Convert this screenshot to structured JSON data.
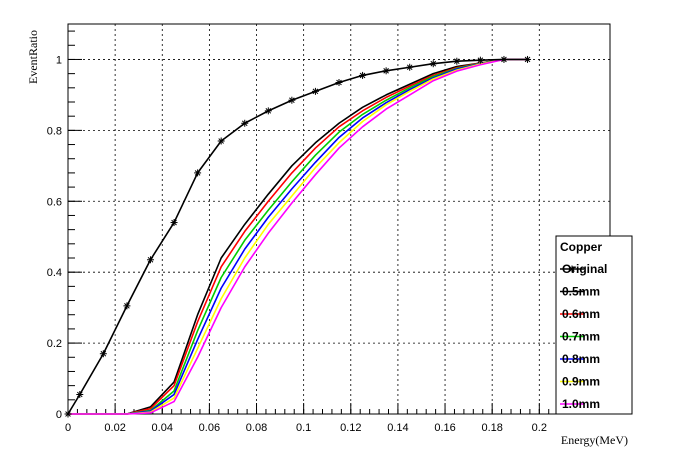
{
  "chart_data": {
    "type": "line",
    "title": "",
    "xlabel": "Energy(MeV)",
    "ylabel": "EventRatio",
    "xlim": [
      0,
      0.23
    ],
    "ylim": [
      0,
      1.1
    ],
    "x_ticks": [
      0,
      0.02,
      0.04,
      0.06,
      0.08,
      0.1,
      0.12,
      0.14,
      0.16,
      0.18,
      0.2
    ],
    "x_tick_labels": [
      "0",
      "0.02",
      "0.04",
      "0.06",
      "0.08",
      "0.1",
      "0.12",
      "0.14",
      "0.16",
      "0.18",
      "0.2"
    ],
    "y_ticks": [
      0,
      0.2,
      0.4,
      0.6,
      0.8,
      1
    ],
    "y_tick_labels": [
      "0",
      "0.2",
      "0.4",
      "0.6",
      "0.8",
      "1"
    ],
    "grid": true,
    "legend": {
      "title": "Copper",
      "position": "bottom-right"
    },
    "x": [
      0,
      0.005,
      0.015,
      0.025,
      0.035,
      0.045,
      0.055,
      0.065,
      0.075,
      0.085,
      0.095,
      0.105,
      0.115,
      0.125,
      0.135,
      0.145,
      0.155,
      0.165,
      0.175,
      0.185,
      0.195
    ],
    "series": [
      {
        "name": "Original",
        "color": "#000000",
        "marker": "star",
        "values": [
          0,
          0.055,
          0.17,
          0.305,
          0.435,
          0.54,
          0.68,
          0.77,
          0.82,
          0.855,
          0.885,
          0.91,
          0.935,
          0.955,
          0.968,
          0.978,
          0.988,
          0.995,
          0.998,
          1.0,
          1.0
        ]
      },
      {
        "name": "0.5mm",
        "color": "#000000",
        "marker": "none",
        "values": [
          0,
          0,
          0,
          0,
          0.02,
          0.09,
          0.28,
          0.44,
          0.535,
          0.62,
          0.7,
          0.765,
          0.82,
          0.865,
          0.9,
          0.93,
          0.96,
          0.98,
          0.99,
          1.0,
          1.0
        ]
      },
      {
        "name": "0.6mm",
        "color": "#ff0000",
        "marker": "none",
        "values": [
          0,
          0,
          0,
          0,
          0.015,
          0.08,
          0.26,
          0.415,
          0.515,
          0.6,
          0.68,
          0.75,
          0.81,
          0.855,
          0.893,
          0.925,
          0.955,
          0.977,
          0.99,
          1.0,
          1.0
        ]
      },
      {
        "name": "0.7mm",
        "color": "#00cc00",
        "marker": "none",
        "values": [
          0,
          0,
          0,
          0,
          0.01,
          0.065,
          0.235,
          0.385,
          0.49,
          0.575,
          0.655,
          0.73,
          0.795,
          0.845,
          0.885,
          0.92,
          0.952,
          0.975,
          0.989,
          1.0,
          1.0
        ]
      },
      {
        "name": "0.8mm",
        "color": "#0000ff",
        "marker": "none",
        "values": [
          0,
          0,
          0,
          0,
          0.008,
          0.055,
          0.21,
          0.355,
          0.465,
          0.555,
          0.635,
          0.71,
          0.78,
          0.835,
          0.878,
          0.915,
          0.948,
          0.973,
          0.988,
          1.0,
          1.0
        ]
      },
      {
        "name": "0.9mm",
        "color": "#ffff00",
        "marker": "none",
        "values": [
          0,
          0,
          0,
          0,
          0.005,
          0.045,
          0.185,
          0.325,
          0.44,
          0.535,
          0.615,
          0.695,
          0.765,
          0.825,
          0.872,
          0.91,
          0.945,
          0.97,
          0.987,
          1.0,
          1.0
        ]
      },
      {
        "name": "1.0mm",
        "color": "#ff00ff",
        "marker": "none",
        "values": [
          0,
          0,
          0,
          0,
          0.003,
          0.035,
          0.16,
          0.3,
          0.415,
          0.51,
          0.595,
          0.675,
          0.75,
          0.81,
          0.86,
          0.9,
          0.94,
          0.967,
          0.985,
          1.0,
          1.0
        ]
      }
    ]
  }
}
